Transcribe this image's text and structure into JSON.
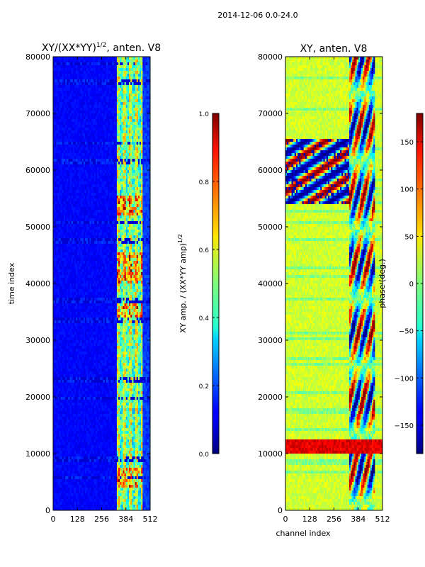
{
  "suptitle": "2014-12-06 0.0-24.0",
  "chart_data": [
    {
      "type": "heatmap",
      "title": "XY/(XX*YY)",
      "title_superscript": "1/2",
      "title_suffix": ", anten. V8",
      "xlabel": "",
      "ylabel": "time index",
      "xlim": [
        0,
        512
      ],
      "ylim": [
        0,
        80000
      ],
      "xticks": [
        "0",
        "128",
        "256",
        "384",
        "512"
      ],
      "yticks": [
        "0",
        "10000",
        "20000",
        "30000",
        "40000",
        "50000",
        "60000",
        "70000",
        "80000"
      ],
      "colorbar": {
        "label": "XY amp. / (XX*YY amp)",
        "label_superscript": "1/2",
        "range": [
          0.0,
          1.0
        ],
        "ticks": [
          "0.0",
          "0.2",
          "0.4",
          "0.6",
          "0.8",
          "1.0"
        ],
        "colormap": "jet"
      }
    },
    {
      "type": "heatmap",
      "title": "XY, anten. V8",
      "xlabel": "channel index",
      "ylabel": "",
      "xlim": [
        0,
        512
      ],
      "ylim": [
        0,
        80000
      ],
      "xticks": [
        "0",
        "128",
        "256",
        "384",
        "512"
      ],
      "yticks": [
        "0",
        "10000",
        "20000",
        "30000",
        "40000",
        "50000",
        "60000",
        "70000",
        "80000"
      ],
      "colorbar": {
        "label": "phase (deg.)",
        "range": [
          -180,
          180
        ],
        "ticks": [
          "−150",
          "−100",
          "−50",
          "0",
          "50",
          "100",
          "150"
        ],
        "tick_values": [
          -150,
          -100,
          -50,
          0,
          50,
          100,
          150
        ],
        "colormap": "jet"
      }
    }
  ]
}
